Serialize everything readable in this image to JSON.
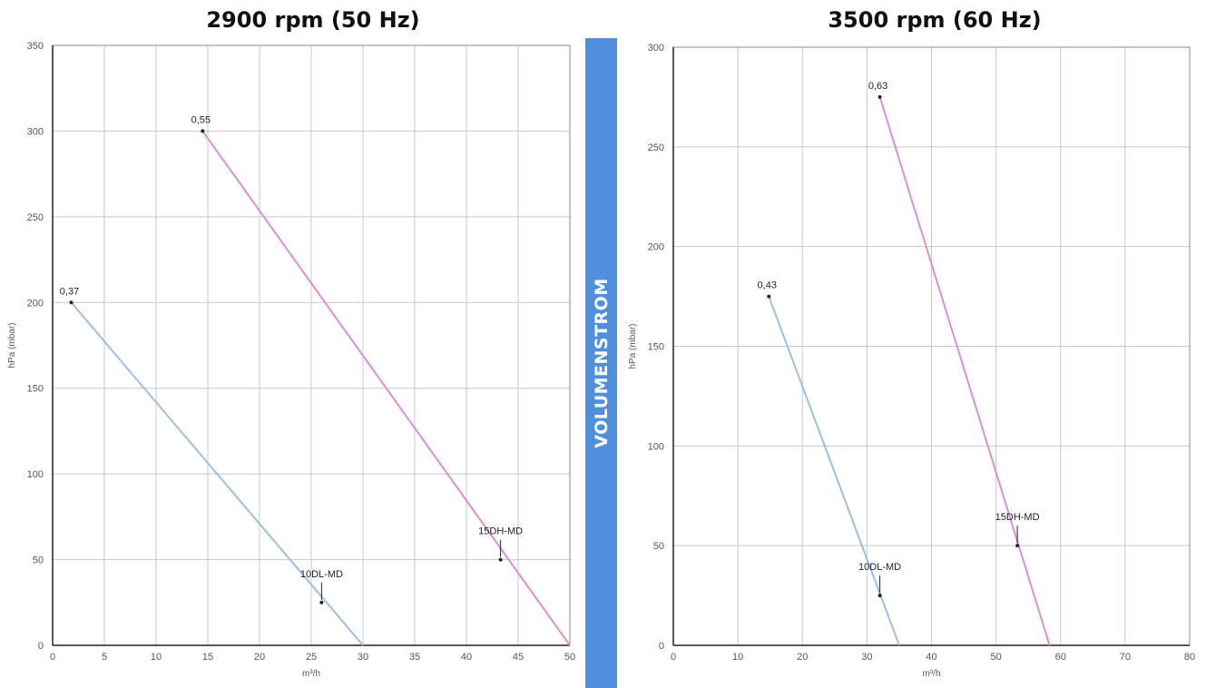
{
  "chart_data": [
    {
      "type": "line",
      "title": "2900 rpm (50 Hz)",
      "xlabel": "m³/h",
      "ylabel": "hPa (mbar)",
      "xlim": [
        0,
        50
      ],
      "ylim": [
        0,
        350
      ],
      "xticks": [
        0,
        5,
        10,
        15,
        20,
        25,
        30,
        35,
        40,
        45,
        50
      ],
      "yticks": [
        0,
        50,
        100,
        150,
        200,
        250,
        300,
        350
      ],
      "grid": true,
      "series": [
        {
          "name": "10DL-MD",
          "color": "#9dbde6",
          "x": [
            1.8,
            30
          ],
          "y": [
            200,
            0
          ],
          "point_label": "0,37",
          "label_point": [
            26,
            25
          ]
        },
        {
          "name": "15DH-MD",
          "color": "#d98fd6",
          "x": [
            14.5,
            50
          ],
          "y": [
            300,
            0
          ],
          "point_label": "0,55",
          "label_point": [
            43.3,
            50
          ]
        }
      ]
    },
    {
      "type": "line",
      "title": "3500 rpm (60 Hz)",
      "xlabel": "m³/h",
      "ylabel": "hPa (mbar)",
      "xlim": [
        0,
        80
      ],
      "ylim": [
        0,
        300
      ],
      "xticks": [
        0,
        10,
        20,
        30,
        40,
        50,
        60,
        70,
        80
      ],
      "yticks": [
        0,
        50,
        100,
        150,
        200,
        250,
        300
      ],
      "grid": true,
      "series": [
        {
          "name": "10DL-MD",
          "color": "#9dbde6",
          "x": [
            14.8,
            35
          ],
          "y": [
            175,
            0
          ],
          "point_label": "0,43",
          "label_point": [
            32,
            25
          ]
        },
        {
          "name": "15DH-MD",
          "color": "#d98fd6",
          "x": [
            32,
            58.3
          ],
          "y": [
            275,
            0
          ],
          "point_label": "0,63",
          "label_point": [
            53.3,
            50
          ]
        }
      ]
    }
  ],
  "band": {
    "label": "VOLUMENSTROM",
    "color": "#4f8fdc"
  }
}
